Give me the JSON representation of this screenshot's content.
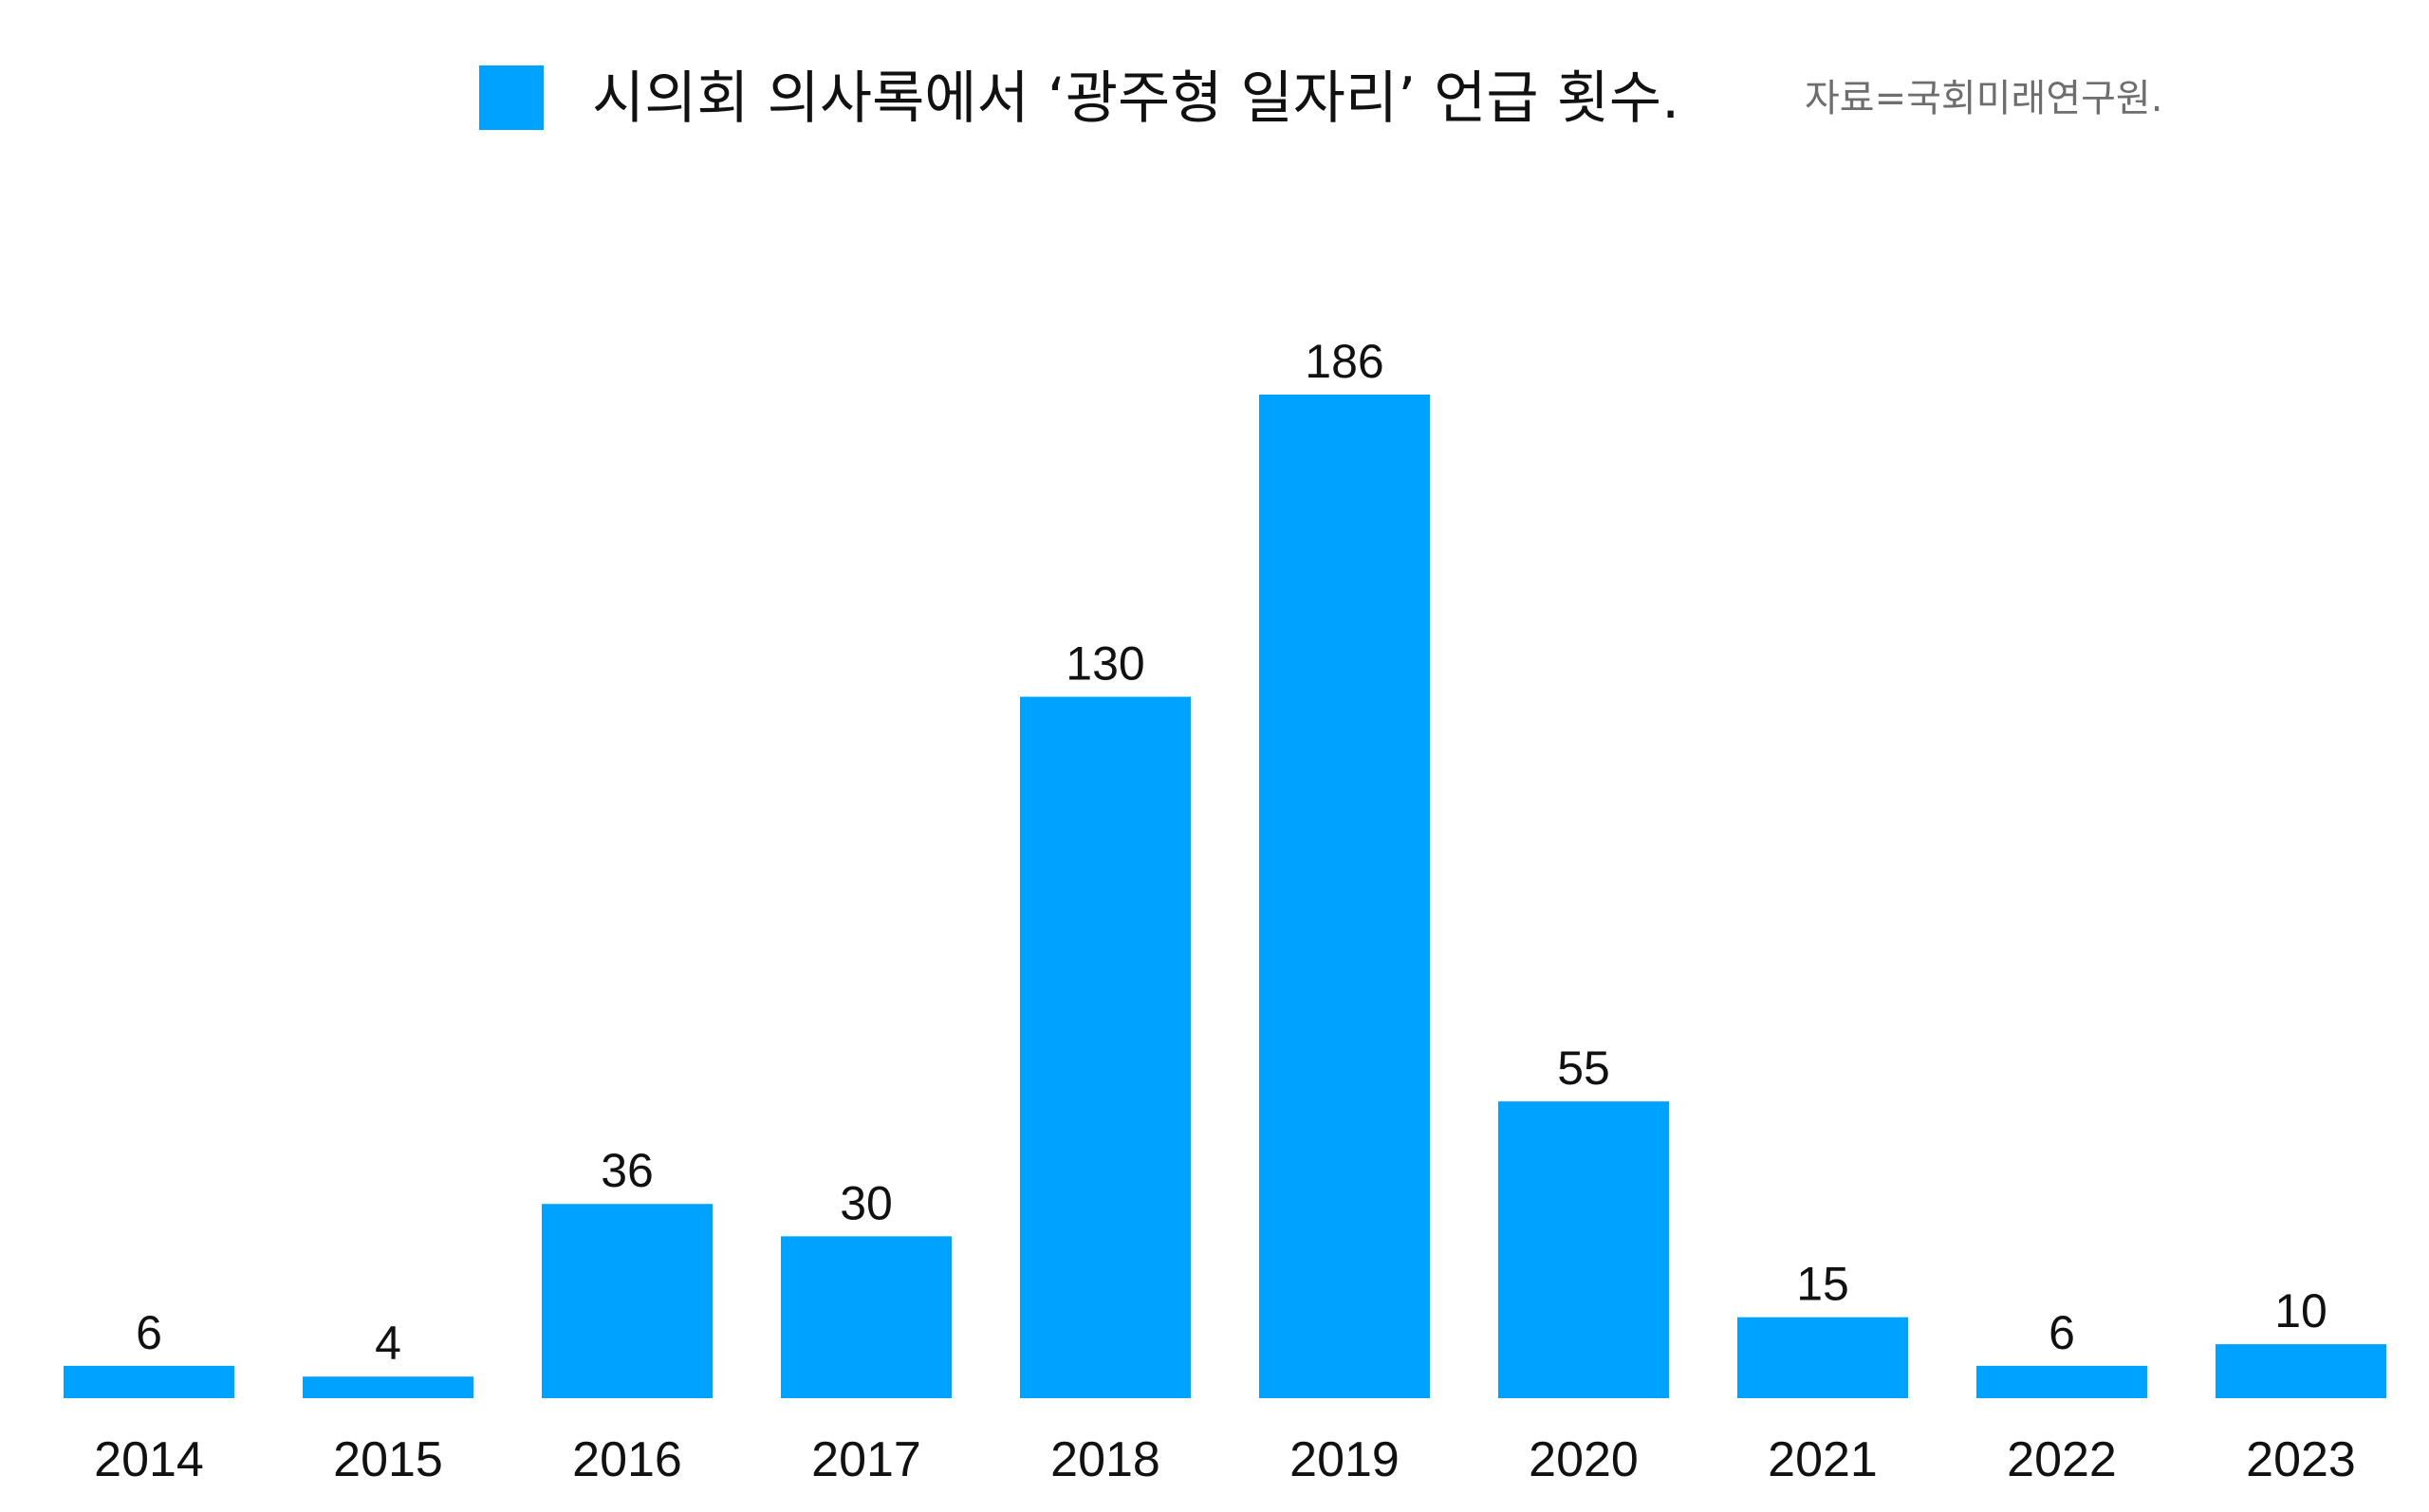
{
  "chart_data": {
    "type": "bar",
    "title": "시의회 의사록에서 ‘광주형 일자리’ 언급 횟수.",
    "source": "자료=국회미래연구원.",
    "legend": {
      "label": "시의회 의사록에서 ‘광주형 일자리’ 언급 횟수.",
      "position": "top"
    },
    "categories": [
      "2014",
      "2015",
      "2016",
      "2017",
      "2018",
      "2019",
      "2020",
      "2021",
      "2022",
      "2023"
    ],
    "values": [
      6,
      4,
      36,
      30,
      130,
      186,
      55,
      15,
      6,
      10
    ],
    "value_labels": [
      "6",
      "4",
      "36",
      "30",
      "130",
      "186",
      "55",
      "15",
      "6",
      "10"
    ],
    "xlabel": "",
    "ylabel": "",
    "ylim": [
      0,
      186
    ],
    "grid": false,
    "colors": {
      "bar": "#00A2FF",
      "text": "#111111",
      "source_text": "#6e6e6e"
    }
  }
}
